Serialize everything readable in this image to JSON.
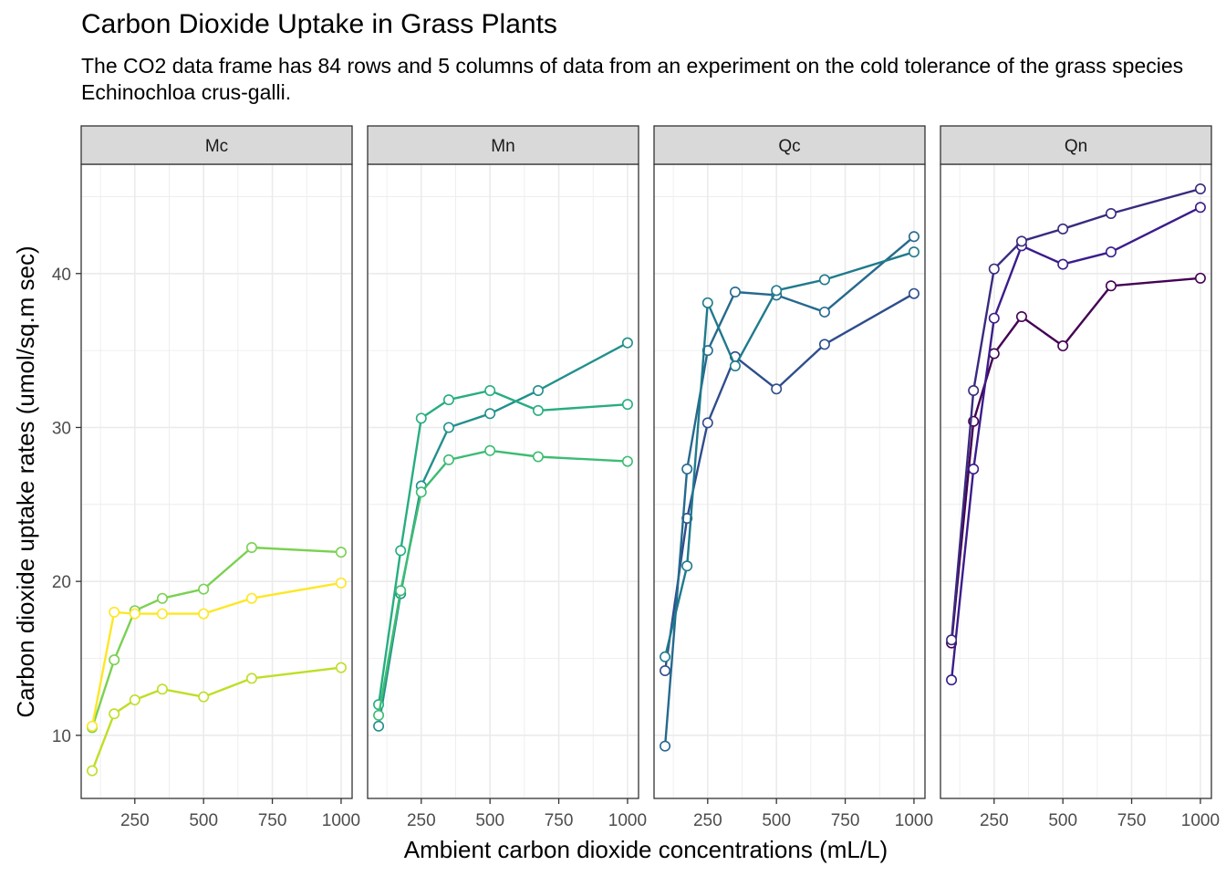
{
  "title": "Carbon Dioxide Uptake in Grass Plants",
  "subtitle": "The CO2 data frame has 84 rows and 5 columns of data from an experiment on the cold tolerance of the grass species Echinochloa crus-galli.",
  "chart_data": {
    "type": "line",
    "facets": [
      "Mc",
      "Mn",
      "Qc",
      "Qn"
    ],
    "xlabel": "Ambient carbon dioxide concentrations (mL/L)",
    "ylabel": "Carbon dioxide uptake rates (umol/sq.m sec)",
    "xlim": [
      55,
      1040
    ],
    "ylim": [
      5.9,
      47.1
    ],
    "xticks": [
      250,
      500,
      750,
      1000
    ],
    "yticks": [
      10,
      20,
      30,
      40
    ],
    "grid": true,
    "legend": "none",
    "x": [
      95,
      175,
      250,
      350,
      500,
      675,
      1000
    ],
    "series": [
      {
        "panel": "Qn",
        "color": "#440154",
        "values": [
          16.0,
          30.4,
          34.8,
          37.2,
          35.3,
          39.2,
          39.7
        ]
      },
      {
        "panel": "Qn",
        "color": "#3B1C8C",
        "values": [
          13.6,
          27.3,
          37.1,
          41.8,
          40.6,
          41.4,
          44.3
        ]
      },
      {
        "panel": "Qn",
        "color": "#3A2A7E",
        "values": [
          16.2,
          32.4,
          40.3,
          42.1,
          42.9,
          43.9,
          45.5
        ]
      },
      {
        "panel": "Qc",
        "color": "#2F4D8C",
        "values": [
          14.2,
          24.1,
          30.3,
          34.6,
          32.5,
          35.4,
          38.7
        ]
      },
      {
        "panel": "Qc",
        "color": "#26698E",
        "values": [
          9.3,
          27.3,
          35.0,
          38.8,
          38.6,
          37.5,
          42.4
        ]
      },
      {
        "panel": "Qc",
        "color": "#1F7A8C",
        "values": [
          15.1,
          21.0,
          38.1,
          34.0,
          38.9,
          39.6,
          41.4
        ]
      },
      {
        "panel": "Mn",
        "color": "#21908C",
        "values": [
          10.6,
          19.2,
          26.2,
          30.0,
          30.9,
          32.4,
          35.5
        ]
      },
      {
        "panel": "Mn",
        "color": "#27AD81",
        "values": [
          12.0,
          22.0,
          30.6,
          31.8,
          32.4,
          31.1,
          31.5
        ]
      },
      {
        "panel": "Mn",
        "color": "#3DBC74",
        "values": [
          11.3,
          19.4,
          25.8,
          27.9,
          28.5,
          28.1,
          27.8
        ]
      },
      {
        "panel": "Mc",
        "color": "#7AD151",
        "values": [
          10.5,
          14.9,
          18.1,
          18.9,
          19.5,
          22.2,
          21.9
        ]
      },
      {
        "panel": "Mc",
        "color": "#BDDF26",
        "values": [
          7.7,
          11.4,
          12.3,
          13.0,
          12.5,
          13.7,
          14.4
        ]
      },
      {
        "panel": "Mc",
        "color": "#FDE725",
        "values": [
          10.6,
          18.0,
          17.9,
          17.9,
          17.9,
          18.9,
          19.9
        ]
      }
    ]
  }
}
